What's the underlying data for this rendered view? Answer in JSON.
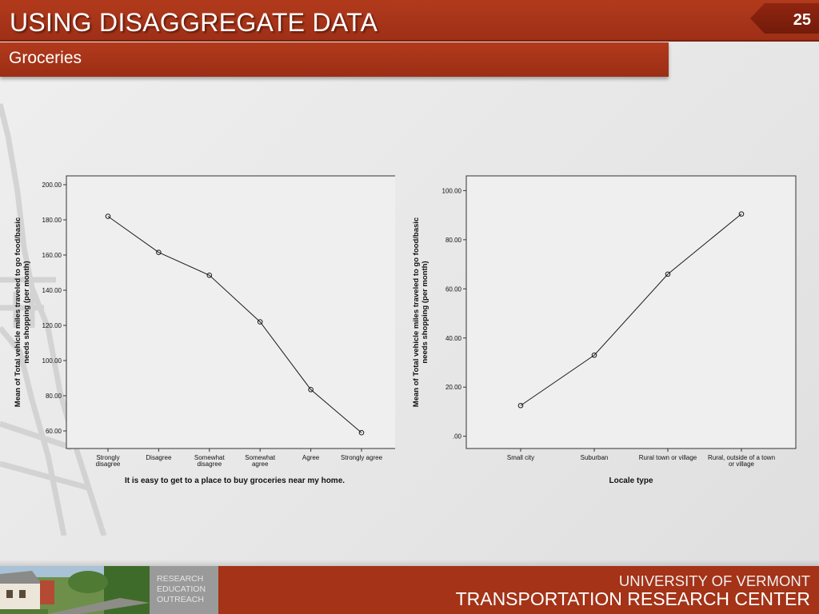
{
  "slide": {
    "title": "USING DISAGGREGATE DATA",
    "subtitle": "Groceries",
    "page_number": "25"
  },
  "footer": {
    "program_lines": [
      "RESEARCH",
      "EDUCATION",
      "OUTREACH"
    ],
    "university": "UNIVERSITY OF VERMONT",
    "center": "TRANSPORTATION RESEARCH CENTER"
  },
  "colors": {
    "brand_red": "#a43318",
    "title_red": "#b23a1c",
    "plot_bg": "#efefef",
    "line": "#1a1a1a"
  },
  "chart_data": [
    {
      "type": "line",
      "title": "",
      "xlabel": "It is easy to get to a place to buy groceries near my home.",
      "ylabel": "Mean of Total vehicle miles traveled to go food/basic needs shopping (per month)",
      "categories": [
        [
          "Strongly",
          "disagree"
        ],
        [
          "Disagree"
        ],
        [
          "Somewhat",
          "disagree"
        ],
        [
          "Somewhat",
          "agree"
        ],
        [
          "Agree"
        ],
        [
          "Strongly agree"
        ]
      ],
      "values": [
        182,
        161.5,
        148.5,
        122,
        83.5,
        59
      ],
      "yticks": [
        "200.00",
        "180.00",
        "160.00",
        "140.00",
        "120.00",
        "100.00",
        "80.00",
        "60.00"
      ],
      "ylim": [
        50,
        205
      ],
      "grid": false
    },
    {
      "type": "line",
      "title": "",
      "xlabel": "Locale type",
      "ylabel": "Mean of Total vehicle miles traveled to go food/basic needs shopping (per month)",
      "categories": [
        [
          "Small city"
        ],
        [
          "Suburban"
        ],
        [
          "Rural town or village"
        ],
        [
          "Rural, outside of a town",
          "or village"
        ]
      ],
      "values": [
        12.5,
        33,
        66,
        90.5
      ],
      "yticks": [
        "100.00",
        "80.00",
        "60.00",
        "40.00",
        "20.00",
        ".00"
      ],
      "ylim": [
        -5,
        106
      ],
      "grid": false
    }
  ]
}
